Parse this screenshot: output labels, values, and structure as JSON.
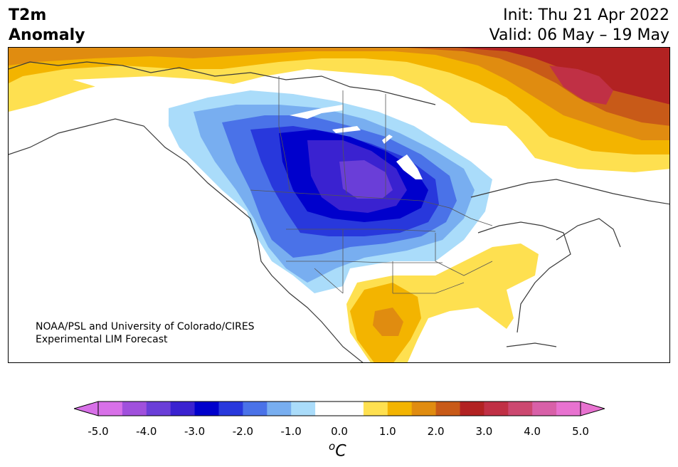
{
  "title": {
    "line1": "T2m",
    "line2": "Anomaly"
  },
  "info": {
    "init": "Init: Thu 21 Apr 2022",
    "valid": "Valid: 06 May – 19 May"
  },
  "credit": {
    "line1": "NOAA/PSL and University of Colorado/CIRES",
    "line2": "Experimental LIM Forecast"
  },
  "colorbar": {
    "ticks": [
      "-5.0",
      "-4.0",
      "-3.0",
      "-2.0",
      "-1.0",
      "0.0",
      "1.0",
      "2.0",
      "3.0",
      "4.0",
      "5.0"
    ],
    "unit": "C",
    "unit_superscript": "o",
    "colors": [
      "#d870e8",
      "#a050dc",
      "#6a3ed8",
      "#3a22d0",
      "#0000cc",
      "#2838dc",
      "#4a72e8",
      "#78aef0",
      "#aadcfa",
      "#ffffff",
      "#ffffff",
      "#fee050",
      "#f3b400",
      "#e08c10",
      "#c85a18",
      "#b22222",
      "#c03045",
      "#cc4870",
      "#d860a8",
      "#e872d0"
    ],
    "min_arrow_color": "#d870e8",
    "max_arrow_color": "#e872d0"
  }
}
